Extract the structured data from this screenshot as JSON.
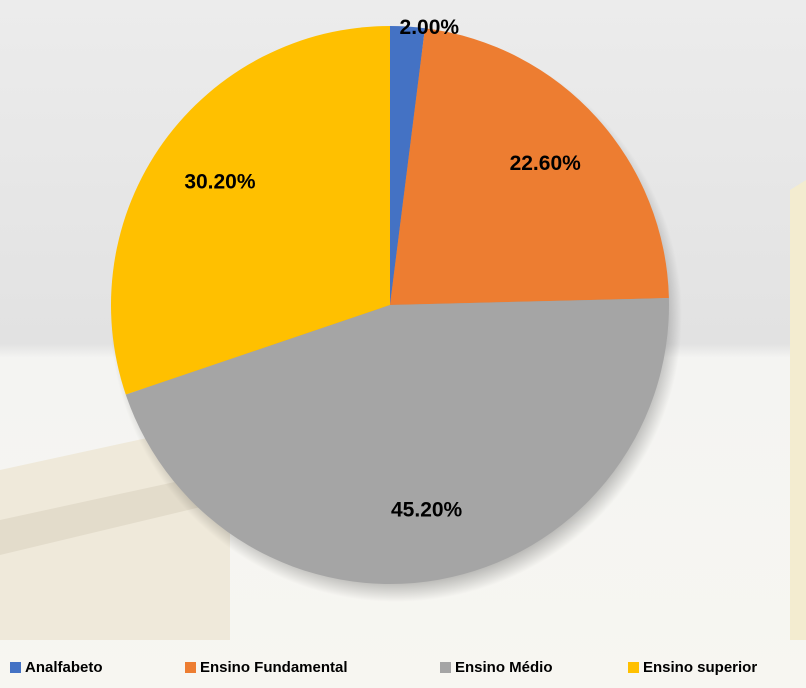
{
  "chart_data": {
    "type": "pie",
    "categories": [
      "Analfabeto",
      "Ensino Fundamental",
      "Ensino Médio",
      "Ensino superior"
    ],
    "values": [
      2.0,
      22.6,
      45.2,
      30.2
    ],
    "value_labels": [
      "2.00%",
      "22.60%",
      "45.20%",
      "30.20%"
    ],
    "colors": [
      "#4472c4",
      "#ed7d31",
      "#a5a5a5",
      "#ffc000"
    ],
    "legend": "bottom"
  }
}
